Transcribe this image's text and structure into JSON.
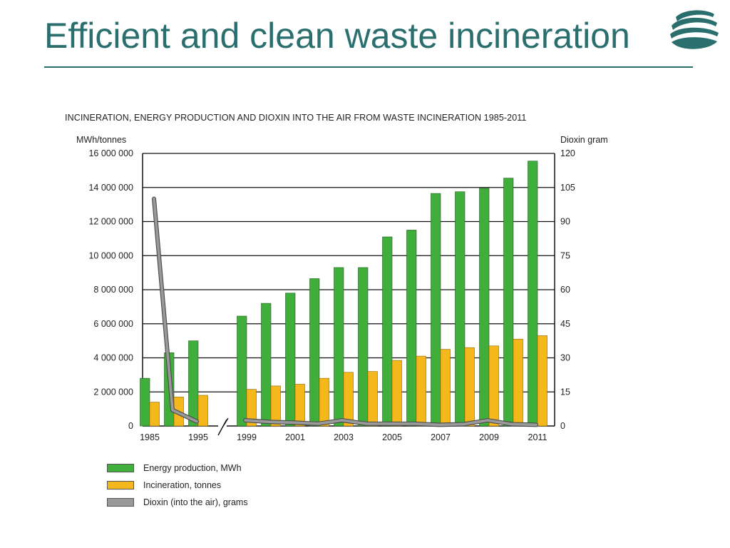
{
  "slide": {
    "title": "Efficient and clean waste incineration",
    "title_color": "#2a6e6e"
  },
  "logo": {
    "icon": "stacked-waves-logo-icon",
    "color": "#2a6e6e"
  },
  "chart_data": {
    "type": "bar",
    "title": "INCINERATION, ENERGY PRODUCTION AND DIOXIN INTO THE AIR FROM WASTE INCINERATION 1985-2011",
    "ylabel_left": "MWh/tonnes",
    "ylabel_right": "Dioxin gram",
    "y_left_range": [
      0,
      16000000
    ],
    "y_left_ticks": [
      "0",
      "2 000 000",
      "4 000 000",
      "6 000 000",
      "8 000 000",
      "10 000 000",
      "12 000 000",
      "14 000 000",
      "16 000 000"
    ],
    "y_right_range": [
      0,
      120
    ],
    "y_right_ticks": [
      "0",
      "15",
      "30",
      "45",
      "60",
      "75",
      "90",
      "105",
      "120"
    ],
    "grid": true,
    "axis_break_between": [
      "1995",
      "1999"
    ],
    "x_tick_labels": [
      "1985",
      "1995",
      "1999",
      "2001",
      "2003",
      "2005",
      "2007",
      "2009",
      "2011"
    ],
    "legend_position": "bottom-left",
    "categories": [
      "1985",
      "1990",
      "1995",
      "1999",
      "2000",
      "2001",
      "2002",
      "2003",
      "2004",
      "2005",
      "2006",
      "2007",
      "2008",
      "2009",
      "2010",
      "2011"
    ],
    "series": [
      {
        "name": "Energy production, MWh",
        "axis": "left",
        "type": "bar",
        "color": "#3fae3b",
        "values": [
          2800000,
          4300000,
          5000000,
          6450000,
          7200000,
          7800000,
          8650000,
          9300000,
          9300000,
          11100000,
          11500000,
          13650000,
          13750000,
          13950000,
          14550000,
          15550000
        ]
      },
      {
        "name": "Incineration, tonnes",
        "axis": "left",
        "type": "bar",
        "color": "#f5b81c",
        "values": [
          1400000,
          1700000,
          1800000,
          2150000,
          2350000,
          2450000,
          2800000,
          3150000,
          3200000,
          3850000,
          4100000,
          4500000,
          4600000,
          4700000,
          5100000,
          5300000
        ]
      },
      {
        "name": "Dioxin (into the air), grams",
        "axis": "right",
        "type": "line",
        "color": "#999999",
        "values": [
          100,
          7,
          2,
          2.5,
          1.8,
          1.5,
          1,
          2.5,
          1,
          1,
          1,
          0.5,
          0.8,
          2.5,
          0.8,
          0.5
        ]
      }
    ]
  }
}
